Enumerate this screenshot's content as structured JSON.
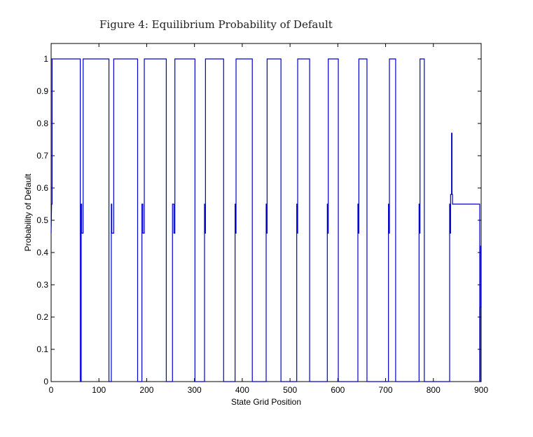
{
  "figure_title": "Figure 4: Equilibrium Probability of Default",
  "chart_data": {
    "type": "line",
    "title": "",
    "xlabel": "State Grid Position",
    "ylabel": "Probability of Default",
    "xlim": [
      0,
      900
    ],
    "ylim": [
      0,
      1.05
    ],
    "xticks": [
      0,
      100,
      200,
      300,
      400,
      500,
      600,
      700,
      800,
      900
    ],
    "yticks": [
      0,
      0.1,
      0.2,
      0.3,
      0.4,
      0.5,
      0.6,
      0.7,
      0.8,
      0.9,
      1
    ],
    "ytick_labels": [
      "0",
      "0.1",
      "0.2",
      "0.3",
      "0.4",
      "0.5",
      "0.6",
      "0.7",
      "0.8",
      "0.9",
      "1"
    ],
    "grid": false,
    "line_color": "#0000cc",
    "series": [
      {
        "x": [
          0,
          1,
          2,
          2,
          5,
          5,
          61,
          61,
          63,
          63,
          64,
          64,
          67,
          67,
          69,
          69,
          121,
          121,
          126,
          126,
          127,
          127,
          131,
          131,
          133,
          133,
          181,
          181,
          190,
          190,
          192,
          192,
          195,
          195,
          197,
          197,
          241,
          241,
          254,
          254,
          257,
          257,
          259,
          259,
          301,
          301,
          321,
          321,
          322,
          322,
          323,
          323,
          361,
          361,
          385,
          385,
          386,
          386,
          387,
          387,
          421,
          421,
          450,
          450,
          451,
          451,
          452,
          452,
          481,
          481,
          514,
          514,
          515,
          515,
          516,
          516,
          541,
          541,
          578,
          578,
          579,
          579,
          580,
          580,
          601,
          601,
          642,
          642,
          643,
          643,
          644,
          644,
          661,
          661,
          706,
          706,
          707,
          707,
          708,
          708,
          721,
          721,
          770,
          770,
          771,
          771,
          772,
          772,
          781,
          781,
          834,
          834,
          835,
          835,
          836,
          836,
          838,
          838,
          839,
          839,
          840,
          840,
          897,
          897,
          898,
          898,
          899,
          899,
          900
        ],
        "y": [
          0.46,
          0.55,
          0.55,
          1,
          1,
          1,
          1,
          0,
          0,
          0.55,
          0.55,
          0.46,
          0.46,
          1,
          1,
          1,
          1,
          0,
          0,
          0.55,
          0.55,
          0.46,
          0.46,
          1,
          1,
          1,
          1,
          0,
          0,
          0.55,
          0.55,
          0.46,
          0.46,
          1,
          1,
          1,
          1,
          0,
          0,
          0.55,
          0.55,
          0.46,
          0.46,
          1,
          1,
          0,
          0,
          0.55,
          0.55,
          0.46,
          0.46,
          1,
          1,
          0,
          0,
          0.55,
          0.55,
          0.46,
          0.46,
          1,
          1,
          0,
          0,
          0.55,
          0.55,
          0.46,
          0.46,
          1,
          1,
          0,
          0,
          0.55,
          0.55,
          0.46,
          0.46,
          1,
          1,
          0,
          0,
          0.55,
          0.55,
          0.46,
          0.46,
          1,
          1,
          0,
          0,
          0.55,
          0.55,
          0.46,
          0.46,
          1,
          1,
          0,
          0,
          0.55,
          0.55,
          0.46,
          0.46,
          1,
          1,
          0,
          0,
          0.55,
          0.55,
          0.46,
          0.46,
          1,
          1,
          0,
          0,
          0.55,
          0.55,
          0.46,
          0.46,
          0.58,
          0.58,
          0.77,
          0.77,
          0.58,
          0.58,
          0.55,
          0.55,
          0.0,
          0.0,
          0.23,
          0.23,
          0.42,
          0.42
        ]
      }
    ]
  }
}
